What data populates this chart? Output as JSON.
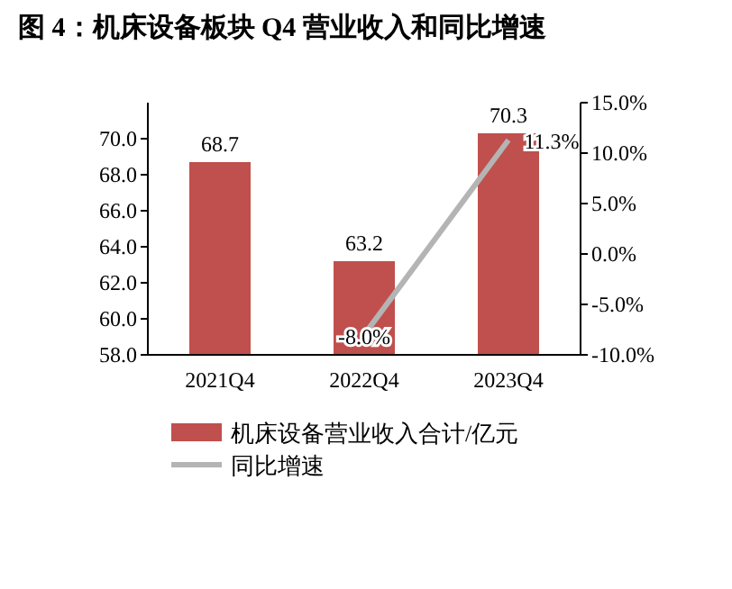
{
  "chart_data": {
    "type": "bar",
    "title": "图 4：机床设备板块 Q4 营业收入和同比增速",
    "categories": [
      "2021Q4",
      "2022Q4",
      "2023Q4"
    ],
    "series": [
      {
        "name": "机床设备营业收入合计/亿元",
        "color": "#c0504d",
        "values": [
          68.7,
          63.2,
          70.3
        ],
        "value_labels": [
          "68.7",
          "63.2",
          "70.3"
        ]
      },
      {
        "name": "同比增速",
        "type": "line",
        "axis": "y2",
        "color": "#b4b4b4",
        "values": [
          null,
          -8.0,
          11.3
        ],
        "value_labels": [
          null,
          "-8.0%",
          "11.3%"
        ]
      }
    ],
    "ylim": [
      58,
      72
    ],
    "yticks": [
      {
        "value": 58,
        "label": "58.0"
      },
      {
        "value": 60,
        "label": "60.0"
      },
      {
        "value": 62,
        "label": "62.0"
      },
      {
        "value": 64,
        "label": "64.0"
      },
      {
        "value": 66,
        "label": "66.0"
      },
      {
        "value": 68,
        "label": "68.0"
      },
      {
        "value": 70,
        "label": "70.0"
      }
    ],
    "y2lim": [
      -10,
      15
    ],
    "y2ticks": [
      {
        "value": -10,
        "label": "-10.0%"
      },
      {
        "value": -5,
        "label": "-5.0%"
      },
      {
        "value": 0,
        "label": "0.0%"
      },
      {
        "value": 5,
        "label": "5.0%"
      },
      {
        "value": 10,
        "label": "10.0%"
      },
      {
        "value": 15,
        "label": "15.0%"
      }
    ],
    "legend": "bottom",
    "grid": false
  }
}
